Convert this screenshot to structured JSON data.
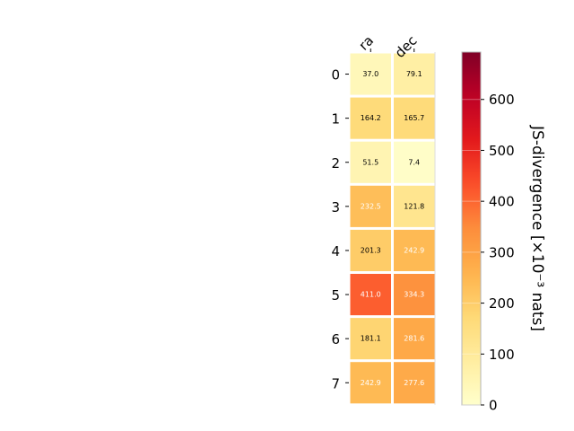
{
  "chart_data": {
    "type": "heatmap",
    "columns": [
      "ra",
      "dec"
    ],
    "rows": [
      "0",
      "1",
      "2",
      "3",
      "4",
      "5",
      "6",
      "7"
    ],
    "values": [
      [
        37.0,
        79.1
      ],
      [
        164.2,
        165.7
      ],
      [
        51.5,
        7.4
      ],
      [
        232.5,
        121.8
      ],
      [
        201.3,
        242.9
      ],
      [
        411.0,
        334.3
      ],
      [
        181.1,
        281.6
      ],
      [
        242.9,
        277.6
      ]
    ],
    "value_labels": [
      [
        "37.0",
        "79.1"
      ],
      [
        "164.2",
        "165.7"
      ],
      [
        "51.5",
        "7.4"
      ],
      [
        "232.5",
        "121.8"
      ],
      [
        "201.3",
        "242.9"
      ],
      [
        "411.0",
        "334.3"
      ],
      [
        "181.1",
        "281.6"
      ],
      [
        "242.9",
        "277.6"
      ]
    ],
    "colorbar": {
      "label": "JS-divergence [×10⁻³ nats]",
      "range": [
        0,
        693
      ],
      "ticks": [
        0,
        100,
        200,
        300,
        400,
        500,
        600
      ],
      "colormap": "YlOrRd"
    }
  }
}
